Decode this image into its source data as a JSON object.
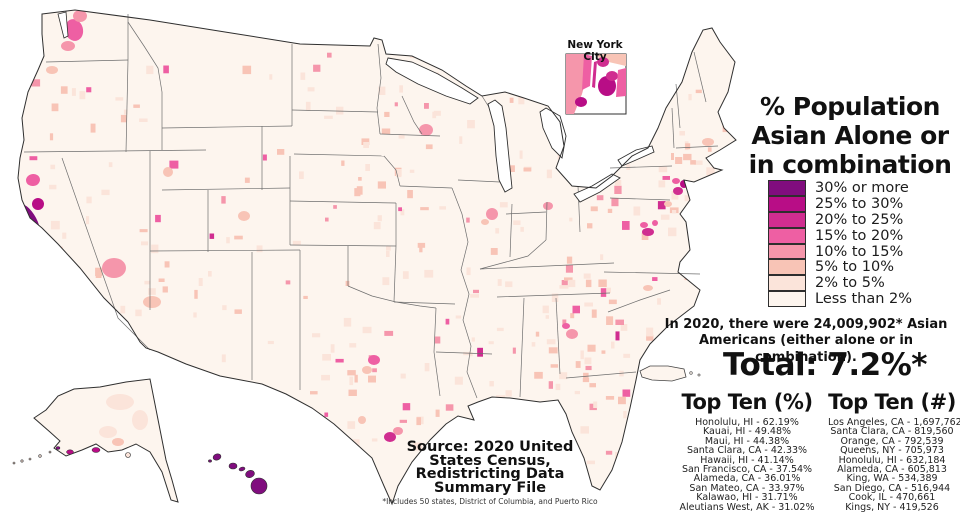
{
  "title": {
    "lines": [
      "% Population",
      "Asian Alone or",
      "in combination"
    ]
  },
  "legend": {
    "items": [
      {
        "label": "30% or more",
        "color": "#800d7e"
      },
      {
        "label": "25% to 30%",
        "color": "#b80d86"
      },
      {
        "label": "20% to 25%",
        "color": "#d02d90"
      },
      {
        "label": "15% to 20%",
        "color": "#ee5fa3"
      },
      {
        "label": "10% to 15%",
        "color": "#f596ab"
      },
      {
        "label": "5% to 10%",
        "color": "#f8c4b6"
      },
      {
        "label": "2% to 5%",
        "color": "#fbe4da"
      },
      {
        "label": "Less than 2%",
        "color": "#fdf5ee"
      }
    ]
  },
  "annotation": "In 2020, there were 24,009,902* Asian Americans (either alone or in combination).",
  "total": "Total: 7.2%*",
  "top_ten_pct": {
    "heading": "Top Ten (%)",
    "items": [
      "Honolulu, HI - 62.19%",
      "Kauai, HI - 49.48%",
      "Maui, HI - 44.38%",
      "Santa Clara, CA - 42.33%",
      "Hawaii, HI - 41.14%",
      "San Francisco, CA - 37.54%",
      "Alameda, CA - 36.01%",
      "San Mateo, CA - 33.97%",
      "Kalawao, HI - 31.71%",
      "Aleutians West, AK - 31.02%"
    ]
  },
  "top_ten_num": {
    "heading": "Top Ten (#)",
    "items": [
      "Los Angeles, CA - 1,697,762",
      "Santa Clara, CA - 819,560",
      "Orange, CA - 792,539",
      "Queens, NY - 705,973",
      "Honolulu, HI - 632,184",
      "Alameda, CA - 605,813",
      "King, WA - 534,389",
      "San Diego, CA - 516,944",
      "Cook, IL - 470,661",
      "Kings, NY - 419,526"
    ]
  },
  "source": {
    "lines": [
      "Source: 2020 United",
      "States Census,",
      "Redistricting Data",
      "Summary File"
    ],
    "footnote": "*Includes 50 states, District of Columbia, and Puerto Rico"
  },
  "inset": {
    "label": "New York City"
  },
  "map": {
    "coast_color": "#2f2f2f",
    "state_line_color": "#6e6e6e",
    "water_color": "#ffffff",
    "background_bucket": 7,
    "hotspots": [
      {
        "id": "king-wa",
        "region": "Seattle - King County, WA",
        "bucket": 3
      },
      {
        "id": "snohomish-wa",
        "region": "Snohomish County, WA",
        "bucket": 4
      },
      {
        "id": "pierce-wa",
        "region": "Pierce County, WA",
        "bucket": 4
      },
      {
        "id": "portland-or",
        "region": "Portland, OR",
        "bucket": 5
      },
      {
        "id": "sacramento-ca",
        "region": "Sacramento, CA",
        "bucket": 3
      },
      {
        "id": "bay-area-ca",
        "region": "San Francisco Bay Area, CA",
        "bucket": 0
      },
      {
        "id": "contra-costa-ca",
        "region": "Contra Costa County, CA",
        "bucket": 1
      },
      {
        "id": "monterey-ca",
        "region": "Monterey Bay area, CA",
        "bucket": 2
      },
      {
        "id": "fresno-ca",
        "region": "Central Valley, CA",
        "bucket": 4
      },
      {
        "id": "los-angeles-ca",
        "region": "Los Angeles County, CA",
        "bucket": 4
      },
      {
        "id": "orange-ca",
        "region": "Orange County, CA",
        "bucket": 2
      },
      {
        "id": "san-diego-ca",
        "region": "San Diego County, CA",
        "bucket": 4
      },
      {
        "id": "clark-nv",
        "region": "Las Vegas - Clark County, NV",
        "bucket": 4
      },
      {
        "id": "maricopa-az",
        "region": "Phoenix, AZ",
        "bucket": 5
      },
      {
        "id": "salt-lake-ut",
        "region": "Salt Lake City, UT",
        "bucket": 5
      },
      {
        "id": "denver-co",
        "region": "Denver, CO",
        "bucket": 5
      },
      {
        "id": "collin-tx",
        "region": "Dallas - Collin County, TX",
        "bucket": 3
      },
      {
        "id": "tarrant-tx",
        "region": "Fort Worth, TX",
        "bucket": 5
      },
      {
        "id": "fort-bend-tx",
        "region": "Houston - Fort Bend County, TX",
        "bucket": 2
      },
      {
        "id": "harris-tx",
        "region": "Harris County, TX",
        "bucket": 4
      },
      {
        "id": "travis-tx",
        "region": "Austin, TX",
        "bucket": 5
      },
      {
        "id": "hennepin-mn",
        "region": "Minneapolis - St. Paul, MN",
        "bucket": 4
      },
      {
        "id": "cook-il",
        "region": "Chicago - Cook County, IL",
        "bucket": 4
      },
      {
        "id": "dupage-il",
        "region": "DuPage County, IL",
        "bucket": 5
      },
      {
        "id": "oakland-mi",
        "region": "Detroit suburbs, MI",
        "bucket": 4
      },
      {
        "id": "gwinnett-ga",
        "region": "Atlanta - Gwinnett County, GA",
        "bucket": 4
      },
      {
        "id": "forsyth-ga",
        "region": "Forsyth County, GA",
        "bucket": 3
      },
      {
        "id": "queens-ny",
        "region": "Queens, NY",
        "bucket": 1
      },
      {
        "id": "middlesex-nj",
        "region": "Middlesex County, NJ",
        "bucket": 2
      },
      {
        "id": "bergen-nj",
        "region": "Bergen County, NJ",
        "bucket": 3
      },
      {
        "id": "fairfax-va",
        "region": "Washington DC - Fairfax County, VA",
        "bucket": 2
      },
      {
        "id": "montgomery-md",
        "region": "Montgomery County, MD",
        "bucket": 3
      },
      {
        "id": "howard-md",
        "region": "Howard County, MD",
        "bucket": 3
      },
      {
        "id": "middlesex-ma",
        "region": "Boston, MA",
        "bucket": 5
      },
      {
        "id": "philadelphia-pa",
        "region": "Philadelphia, PA",
        "bucket": 5
      },
      {
        "id": "wake-nc",
        "region": "Raleigh-Durham, NC",
        "bucket": 5
      }
    ]
  }
}
